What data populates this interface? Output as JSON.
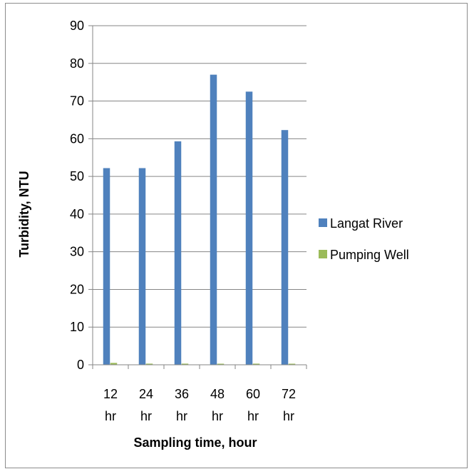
{
  "chart_data": {
    "type": "bar",
    "categories": [
      "12 hr",
      "24 hr",
      "36 hr",
      "48 hr",
      "60 hr",
      "72 hr"
    ],
    "category_lines": [
      [
        "12",
        "hr"
      ],
      [
        "24",
        "hr"
      ],
      [
        "36",
        "hr"
      ],
      [
        "48",
        "hr"
      ],
      [
        "60",
        "hr"
      ],
      [
        "72",
        "hr"
      ]
    ],
    "series": [
      {
        "name": "Langat River",
        "color": "#4f81bd",
        "values": [
          52.2,
          52.2,
          59.3,
          77.0,
          72.5,
          62.3
        ]
      },
      {
        "name": "Pumping Well",
        "color": "#9bbb59",
        "values": [
          0.5,
          0.3,
          0.3,
          0.2,
          0.3,
          0.2
        ]
      }
    ],
    "xlabel": "Sampling time, hour",
    "ylabel": "Turbidity, NTU",
    "ylim": [
      0,
      90
    ],
    "yticks": [
      0,
      10,
      20,
      30,
      40,
      50,
      60,
      70,
      80,
      90
    ],
    "grid": true,
    "legend_position": "right"
  }
}
